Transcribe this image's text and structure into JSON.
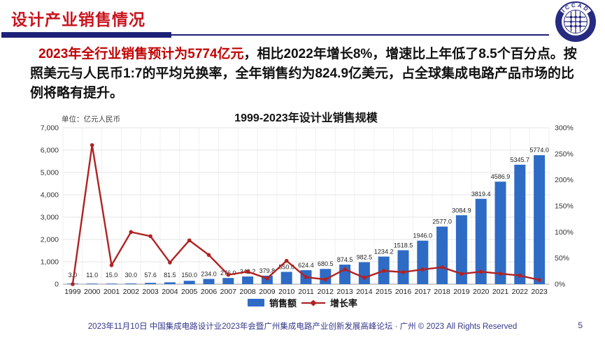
{
  "header": {
    "title": "设计产业销售情况"
  },
  "logo": {
    "label": "ICCAD"
  },
  "paragraph": {
    "highlight": "2023年全行业销售预计为5774亿元",
    "rest": "，相比2022年增长8%，增速比上年低了8.5个百分点。按照美元与人民币1:7的平均兑换率，全年销售约为824.9亿美元，占全球集成电路产品市场的比例将略有提升。"
  },
  "chart_data": {
    "type": "bar+line",
    "title": "1999-2023年设计业销售规模",
    "unit_label": "单位：亿元人民币",
    "categories": [
      "1999",
      "2000",
      "2001",
      "2002",
      "2003",
      "2004",
      "2005",
      "2006",
      "2007",
      "2008",
      "2009",
      "2010",
      "2011",
      "2012",
      "2013",
      "2014",
      "2015",
      "2016",
      "2017",
      "2018",
      "2019",
      "2020",
      "2021",
      "2022",
      "2023"
    ],
    "series": [
      {
        "name": "销售额",
        "type": "bar",
        "axis": "left",
        "color": "#2e6bc5",
        "values": [
          3.0,
          11.0,
          15.0,
          30.0,
          57.6,
          81.5,
          150.0,
          234.0,
          276.0,
          342.2,
          379.8,
          550.0,
          624.4,
          680.5,
          874.5,
          982.5,
          1234.2,
          1518.5,
          1946.0,
          2577.0,
          3084.9,
          3819.4,
          4586.9,
          5345.7,
          5774.0
        ],
        "labels": [
          "3.0",
          "11.0",
          "15.0",
          "30.0",
          "57.6",
          "81.5",
          "150.0",
          "234.0",
          "276.0",
          "342.2",
          "379.8",
          "550.0",
          "624.4",
          "680.5",
          "874.5",
          "982.5",
          "1234.2",
          "1518.5",
          "1946.0",
          "2577.0",
          "3084.9",
          "3819.4",
          "4586.9",
          "5345.7",
          "5774.0"
        ]
      },
      {
        "name": "增长率",
        "type": "line",
        "axis": "right",
        "color": "#b02222",
        "values_pct": [
          0,
          266.7,
          36.4,
          100.0,
          92.0,
          41.5,
          84.0,
          56.0,
          17.9,
          24.0,
          11.0,
          44.8,
          13.5,
          9.0,
          28.5,
          12.3,
          25.6,
          23.0,
          28.2,
          32.4,
          19.7,
          23.8,
          20.1,
          16.5,
          8.0
        ]
      }
    ],
    "left_axis": {
      "min": 0,
      "max": 7000,
      "step": 1000
    },
    "right_axis": {
      "min": 0,
      "max": 300,
      "step": 50,
      "suffix": "%"
    },
    "grid": true,
    "legend_position": "bottom"
  },
  "footer": {
    "text": "2023年11月10日 中国集成电路设计业2023年会暨广州集成电路产业创新发展高峰论坛 · 广州 © 2023 All Rights Reserved",
    "page": "5"
  },
  "colors": {
    "accent_red": "#c8151e",
    "navy": "#1d2177",
    "bar_blue": "#2e6bc5",
    "line_red": "#b02222"
  }
}
